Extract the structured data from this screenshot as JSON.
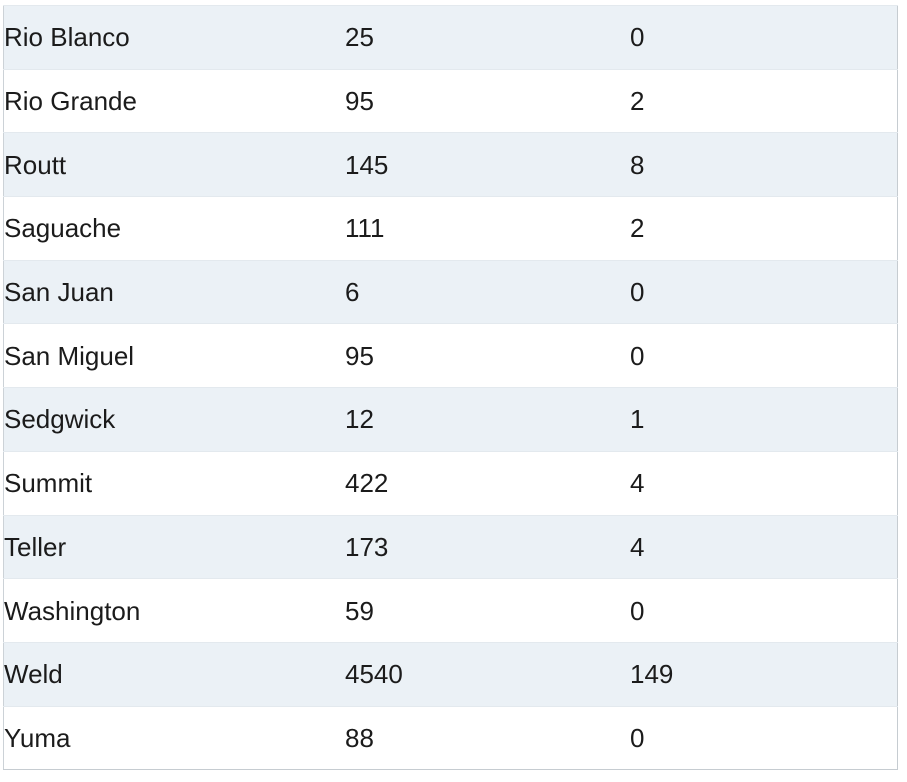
{
  "colors": {
    "row_stripe": "#ebf1f6",
    "row_plain": "#ffffff",
    "row_divider": "#e3e9ee",
    "outer_border": "#c6ccd1",
    "text": "#1b1b1b"
  },
  "table": {
    "rows": [
      {
        "name": "Rio Blanco",
        "value_1": "25",
        "value_2": "0"
      },
      {
        "name": "Rio Grande",
        "value_1": "95",
        "value_2": "2"
      },
      {
        "name": "Routt",
        "value_1": "145",
        "value_2": "8"
      },
      {
        "name": "Saguache",
        "value_1": "111",
        "value_2": "2"
      },
      {
        "name": "San Juan",
        "value_1": "6",
        "value_2": "0"
      },
      {
        "name": "San Miguel",
        "value_1": "95",
        "value_2": "0"
      },
      {
        "name": "Sedgwick",
        "value_1": "12",
        "value_2": "1"
      },
      {
        "name": "Summit",
        "value_1": "422",
        "value_2": "4"
      },
      {
        "name": "Teller",
        "value_1": "173",
        "value_2": "4"
      },
      {
        "name": "Washington",
        "value_1": "59",
        "value_2": "0"
      },
      {
        "name": "Weld",
        "value_1": "4540",
        "value_2": "149"
      },
      {
        "name": "Yuma",
        "value_1": "88",
        "value_2": "0"
      }
    ]
  }
}
